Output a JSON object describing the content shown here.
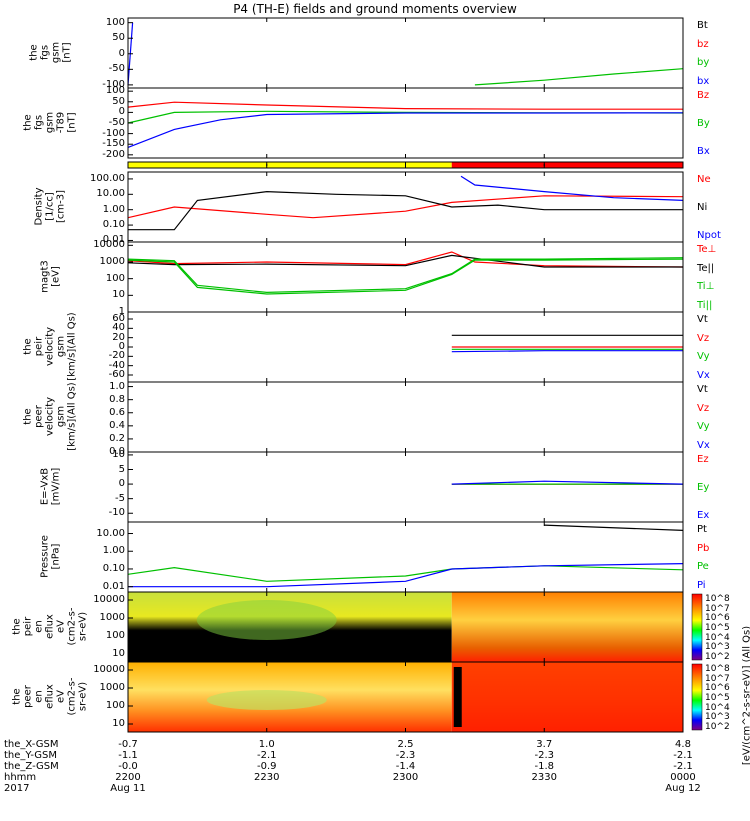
{
  "title": "P4 (TH-E) fields and ground moments overview",
  "panels": [
    {
      "id": "fgs-top",
      "ylabel": [
        "the",
        "fgs",
        "gsm",
        "[nT]"
      ],
      "ticks": [
        "100",
        "50",
        "0",
        "-50",
        "-100"
      ],
      "legend": [
        {
          "text": "Bt",
          "color": "#000000"
        },
        {
          "text": "bz",
          "color": "#ff0000"
        },
        {
          "text": "by",
          "color": "#00c000"
        },
        {
          "text": "bx",
          "color": "#0000ff"
        }
      ]
    },
    {
      "id": "fgs-dipole",
      "ylabel": [
        "the",
        "fgs",
        "gsm",
        "-T89",
        "[nT]"
      ],
      "ticks": [
        "100",
        "50",
        "0",
        "-50",
        "-100",
        "-150",
        "-200"
      ],
      "legend": [
        {
          "text": "Bz",
          "color": "#ff0000"
        },
        {
          "text": "By",
          "color": "#00c000"
        },
        {
          "text": "Bx",
          "color": "#0000ff"
        }
      ]
    },
    {
      "id": "mode-bar",
      "ylabel": [],
      "ticks": [],
      "legend": []
    },
    {
      "id": "density",
      "ylabel": [
        "Density",
        "[1/cc]",
        "[cm-3]"
      ],
      "ticks": [
        "100.00",
        "10.00",
        "1.00",
        "0.10",
        "0.01"
      ],
      "legend": [
        {
          "text": "Ne",
          "color": "#ff0000"
        },
        {
          "text": "Ni",
          "color": "#000000"
        },
        {
          "text": "Npot",
          "color": "#0000ff"
        }
      ]
    },
    {
      "id": "temperature",
      "ylabel": [
        "magt3",
        "[eV]"
      ],
      "ticks": [
        "10000",
        "1000",
        "100",
        "10",
        "1"
      ],
      "legend": [
        {
          "text": "Te⊥",
          "color": "#ff0000"
        },
        {
          "text": "Te||",
          "color": "#000000"
        },
        {
          "text": "Ti⊥",
          "color": "#00c000"
        },
        {
          "text": "Ti||",
          "color": "#00c000"
        }
      ]
    },
    {
      "id": "peir-velocity",
      "ylabel": [
        "the",
        "peir",
        "velocity",
        "gsm",
        "[km/s](All Qs)"
      ],
      "ticks": [
        "60",
        "40",
        "20",
        "0",
        "-20",
        "-40",
        "-60"
      ],
      "legend": [
        {
          "text": "Vt",
          "color": "#000000"
        },
        {
          "text": "Vz",
          "color": "#ff0000"
        },
        {
          "text": "Vy",
          "color": "#00c000"
        },
        {
          "text": "Vx",
          "color": "#0000ff"
        }
      ]
    },
    {
      "id": "peer-velocity",
      "ylabel": [
        "the",
        "peer",
        "velocity",
        "gsm",
        "[km/s](All Qs)"
      ],
      "ticks": [
        "1.0",
        "0.8",
        "0.6",
        "0.4",
        "0.2",
        "0.0"
      ],
      "legend": [
        {
          "text": "Vt",
          "color": "#000000"
        },
        {
          "text": "Vz",
          "color": "#ff0000"
        },
        {
          "text": "Vy",
          "color": "#00c000"
        },
        {
          "text": "Vx",
          "color": "#0000ff"
        }
      ]
    },
    {
      "id": "efield",
      "ylabel": [
        "E=-VxB",
        "[mV/m]"
      ],
      "ticks": [
        "10",
        "5",
        "0",
        "-5",
        "-10"
      ],
      "legend": [
        {
          "text": "Ez",
          "color": "#ff0000"
        },
        {
          "text": "Ey",
          "color": "#00c000"
        },
        {
          "text": "Ex",
          "color": "#0000ff"
        }
      ]
    },
    {
      "id": "pressure",
      "ylabel": [
        "Pressure",
        "[nPa]"
      ],
      "ticks": [
        "10.00",
        "1.00",
        "0.10",
        "0.01"
      ],
      "legend": [
        {
          "text": "Pt",
          "color": "#000000"
        },
        {
          "text": "Pb",
          "color": "#ff0000"
        },
        {
          "text": "Pe",
          "color": "#00c000"
        },
        {
          "text": "Pi",
          "color": "#0000ff"
        }
      ]
    },
    {
      "id": "peir-eflux",
      "ylabel": [
        "the",
        "peir",
        "en",
        "eflux",
        "eV",
        "(cm2-s-",
        "sr-eV)"
      ],
      "ticks": [
        "10000",
        "1000",
        "100",
        "10"
      ],
      "legend": []
    },
    {
      "id": "peer-eflux",
      "ylabel": [
        "the",
        "peer",
        "en",
        "eflux",
        "eV",
        "(cm2-s-",
        "sr-eV)"
      ],
      "ticks": [
        "10000",
        "1000",
        "100",
        "10"
      ],
      "legend": []
    }
  ],
  "colorbar": {
    "ticks_top": [
      "10^8",
      "10^7",
      "10^6",
      "10^5",
      "10^4",
      "10^3",
      "10^2"
    ],
    "ticks_bottom": [
      "10^8",
      "10^7",
      "10^6",
      "10^5",
      "10^4",
      "10^3",
      "10^2"
    ],
    "label": "[eV/(cm^2-s-sr-eV)] (All Qs)"
  },
  "ephemeris": {
    "rows": [
      "the_X-GSM",
      "the_Y-GSM",
      "the_Z-GSM",
      "hhmm",
      "2017"
    ],
    "columns": [
      {
        "x": "-0.7",
        "y": "-1.1",
        "z": "-0.0",
        "hhmm": "2200",
        "date": "Aug 11"
      },
      {
        "x": "1.0",
        "y": "-2.1",
        "z": "-0.9",
        "hhmm": "2230",
        "date": ""
      },
      {
        "x": "2.5",
        "y": "-2.3",
        "z": "-1.4",
        "hhmm": "2300",
        "date": ""
      },
      {
        "x": "3.7",
        "y": "-2.3",
        "z": "-1.8",
        "hhmm": "2330",
        "date": ""
      },
      {
        "x": "4.8",
        "y": "-2.1",
        "z": "-2.1",
        "hhmm": "0000",
        "date": "Aug 12"
      }
    ]
  },
  "chart_data": {
    "type": "line",
    "title": "P4 (TH-E) fields and ground moments overview",
    "x_axis": "time hhmm, 2017 Aug 11 2200 to Aug 12 0000",
    "x_ticks": [
      "2200",
      "2230",
      "2300",
      "2330",
      "0000"
    ],
    "series": [
      {
        "panel": "fgs-top",
        "name": "by",
        "color": "#00c000",
        "x": [
          "2315",
          "2330",
          "2345",
          "0000"
        ],
        "values": [
          -100,
          -85,
          -65,
          -48
        ]
      },
      {
        "panel": "fgs-top",
        "name": "bx",
        "color": "#0000ff",
        "x": [
          "2200",
          "2201"
        ],
        "values": [
          -100,
          100
        ]
      },
      {
        "panel": "fgs-dipole",
        "name": "Bz",
        "color": "#ff0000",
        "x": [
          "2200",
          "2210",
          "2230",
          "2300",
          "2330",
          "0000"
        ],
        "values": [
          25,
          48,
          35,
          18,
          15,
          15
        ]
      },
      {
        "panel": "fgs-dipole",
        "name": "By",
        "color": "#00c000",
        "x": [
          "2200",
          "2210",
          "2230",
          "2300",
          "2330",
          "0000"
        ],
        "values": [
          -50,
          0,
          5,
          0,
          -2,
          -3
        ]
      },
      {
        "panel": "fgs-dipole",
        "name": "Bx",
        "color": "#0000ff",
        "x": [
          "2200",
          "2210",
          "2220",
          "2230",
          "2300",
          "2330",
          "0000"
        ],
        "values": [
          -165,
          -80,
          -35,
          -10,
          -3,
          -3,
          -2
        ]
      },
      {
        "panel": "density",
        "name": "Ne",
        "color": "#ff0000",
        "x": [
          "2200",
          "2210",
          "2230",
          "2240",
          "2300",
          "2310",
          "2330",
          "0000"
        ],
        "values": [
          0.3,
          1.5,
          0.5,
          0.3,
          0.8,
          3.0,
          8.0,
          7.0
        ]
      },
      {
        "panel": "density",
        "name": "Ni",
        "color": "#000000",
        "x": [
          "2200",
          "2210",
          "2215",
          "2230",
          "2245",
          "2300",
          "2310",
          "2320",
          "2330",
          "0000"
        ],
        "values": [
          0.05,
          0.05,
          4.0,
          15.0,
          10.0,
          8.0,
          1.5,
          2.0,
          1.0,
          1.0
        ]
      },
      {
        "panel": "density",
        "name": "Npot",
        "color": "#0000ff",
        "x": [
          "2312",
          "2315",
          "2330",
          "2345",
          "0000"
        ],
        "values": [
          150,
          40,
          15,
          6,
          4
        ]
      },
      {
        "panel": "temperature",
        "name": "Te⊥",
        "color": "#ff0000",
        "x": [
          "2200",
          "2210",
          "2230",
          "2300",
          "2310",
          "2315",
          "2330",
          "0000"
        ],
        "values": [
          1200,
          800,
          1000,
          700,
          4000,
          1000,
          600,
          500
        ]
      },
      {
        "panel": "temperature",
        "name": "Te||",
        "color": "#000000",
        "x": [
          "2200",
          "2210",
          "2230",
          "2300",
          "2310",
          "2330",
          "0000"
        ],
        "values": [
          900,
          700,
          750,
          600,
          2500,
          500,
          500
        ]
      },
      {
        "panel": "temperature",
        "name": "Ti⊥",
        "color": "#00c000",
        "x": [
          "2200",
          "2210",
          "2215",
          "2230",
          "2300",
          "2310",
          "2315",
          "2330",
          "0000"
        ],
        "values": [
          1500,
          1200,
          40,
          15,
          25,
          200,
          1500,
          1500,
          1800
        ]
      },
      {
        "panel": "temperature",
        "name": "Ti||",
        "color": "#00c000",
        "x": [
          "2200",
          "2210",
          "2215",
          "2230",
          "2300",
          "2310",
          "2315",
          "2330",
          "0000"
        ],
        "values": [
          1300,
          1000,
          30,
          12,
          20,
          180,
          1300,
          1300,
          1500
        ]
      },
      {
        "panel": "peir-velocity",
        "name": "Vt",
        "color": "#000000",
        "x": [
          "2310",
          "2330",
          "0000"
        ],
        "values": [
          25,
          25,
          25
        ]
      },
      {
        "panel": "peir-velocity",
        "name": "Vz",
        "color": "#ff0000",
        "x": [
          "2310",
          "2330",
          "0000"
        ],
        "values": [
          0,
          0,
          0
        ]
      },
      {
        "panel": "peir-velocity",
        "name": "Vy",
        "color": "#00c000",
        "x": [
          "2310",
          "2330",
          "0000"
        ],
        "values": [
          -5,
          -5,
          -5
        ]
      },
      {
        "panel": "peir-velocity",
        "name": "Vx",
        "color": "#0000ff",
        "x": [
          "2310",
          "2330",
          "0000"
        ],
        "values": [
          -10,
          -8,
          -8
        ]
      },
      {
        "panel": "efield",
        "name": "Ez",
        "color": "#ff0000",
        "x": [
          "2310",
          "2330",
          "0000"
        ],
        "values": [
          0,
          0,
          0
        ]
      },
      {
        "panel": "efield",
        "name": "Ey",
        "color": "#00c000",
        "x": [
          "2310",
          "2330",
          "0000"
        ],
        "values": [
          0,
          0,
          0
        ]
      },
      {
        "panel": "efield",
        "name": "Ex",
        "color": "#0000ff",
        "x": [
          "2310",
          "2330",
          "0000"
        ],
        "values": [
          0,
          1,
          0
        ]
      },
      {
        "panel": "pressure",
        "name": "Pt",
        "color": "#000000",
        "x": [
          "2330",
          "0000"
        ],
        "values": [
          30,
          15
        ]
      },
      {
        "panel": "pressure",
        "name": "Pe",
        "color": "#00c000",
        "x": [
          "2200",
          "2210",
          "2230",
          "2300",
          "2310",
          "2330",
          "0000"
        ],
        "values": [
          0.05,
          0.12,
          0.02,
          0.04,
          0.1,
          0.15,
          0.09
        ]
      },
      {
        "panel": "pressure",
        "name": "Pi",
        "color": "#0000ff",
        "x": [
          "2200",
          "2230",
          "2300",
          "2310",
          "2330",
          "0000"
        ],
        "values": [
          0.01,
          0.01,
          0.02,
          0.1,
          0.15,
          0.2
        ]
      }
    ],
    "mode_bar": [
      {
        "from": "2200",
        "to": "2310",
        "color": "#ffff00"
      },
      {
        "from": "2310",
        "to": "0000",
        "color": "#ff0000"
      }
    ]
  }
}
